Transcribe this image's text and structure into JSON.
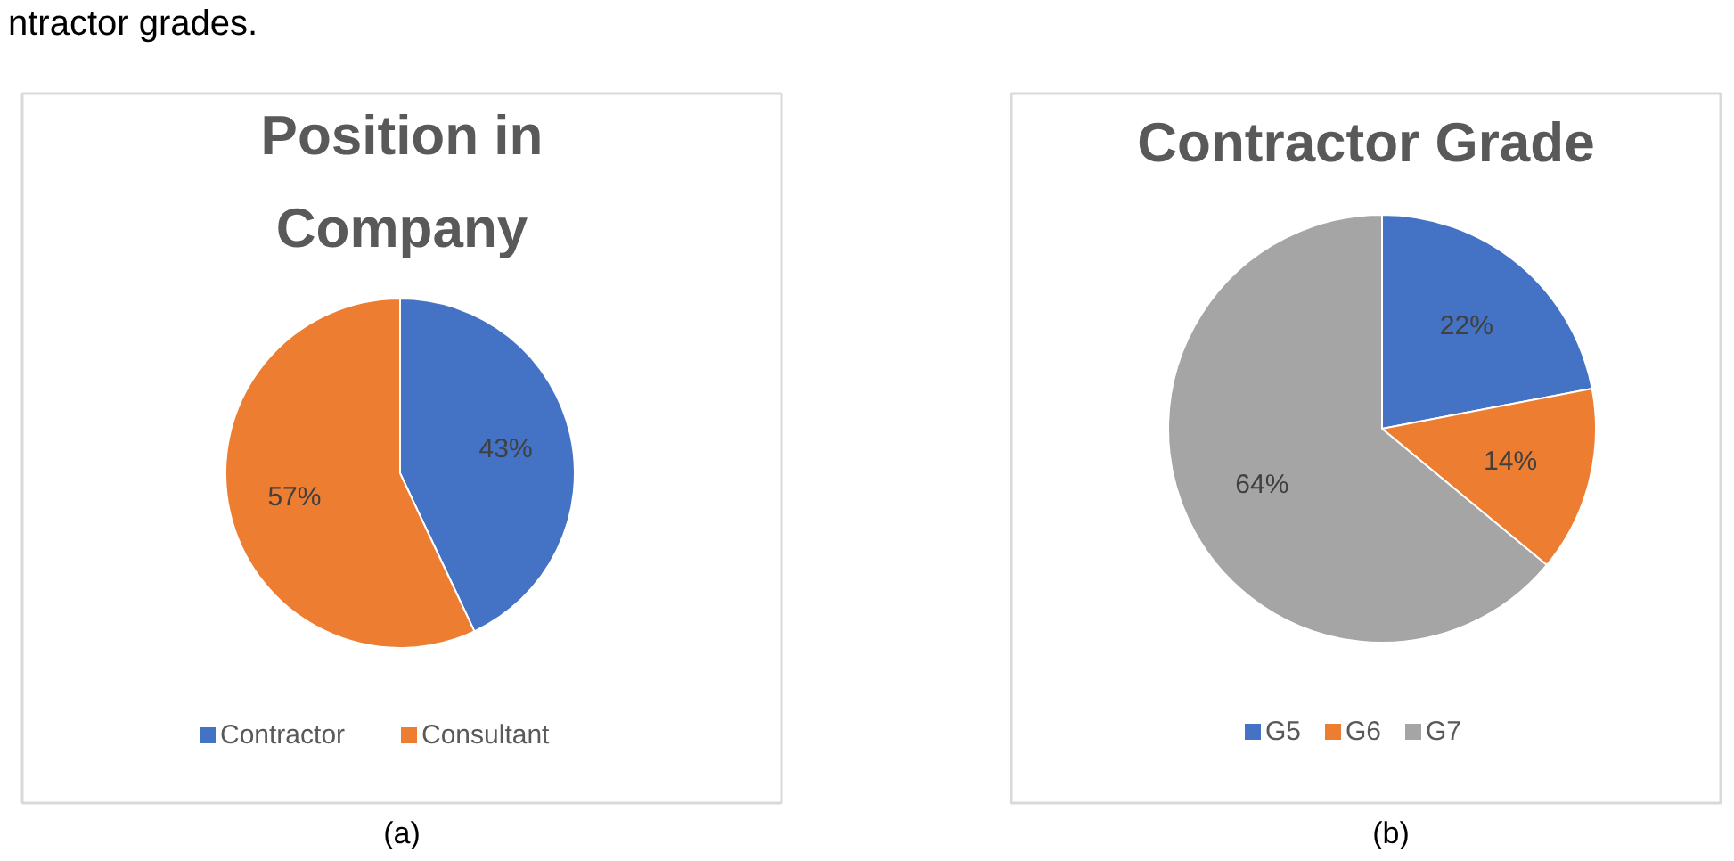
{
  "chart_data": [
    {
      "type": "pie",
      "title": "Position in Company",
      "categories": [
        "Contractor",
        "Consultant"
      ],
      "values": [
        43,
        57
      ],
      "colors": [
        "#4472c4",
        "#ed7d31"
      ],
      "value_labels": [
        "43%",
        "57%"
      ],
      "legend": "bottom",
      "annotations": [
        "ntractor grades.",
        "(a)"
      ]
    },
    {
      "type": "pie",
      "title": "Contractor Grade",
      "categories": [
        "G5",
        "G6",
        "G7"
      ],
      "values": [
        22,
        14,
        64
      ],
      "colors": [
        "#4472c4",
        "#ed7d31",
        "#a5a5a5"
      ],
      "value_labels": [
        "22%",
        "14%",
        "64%"
      ],
      "legend": "bottom",
      "annotations": [
        "(b)"
      ]
    }
  ]
}
